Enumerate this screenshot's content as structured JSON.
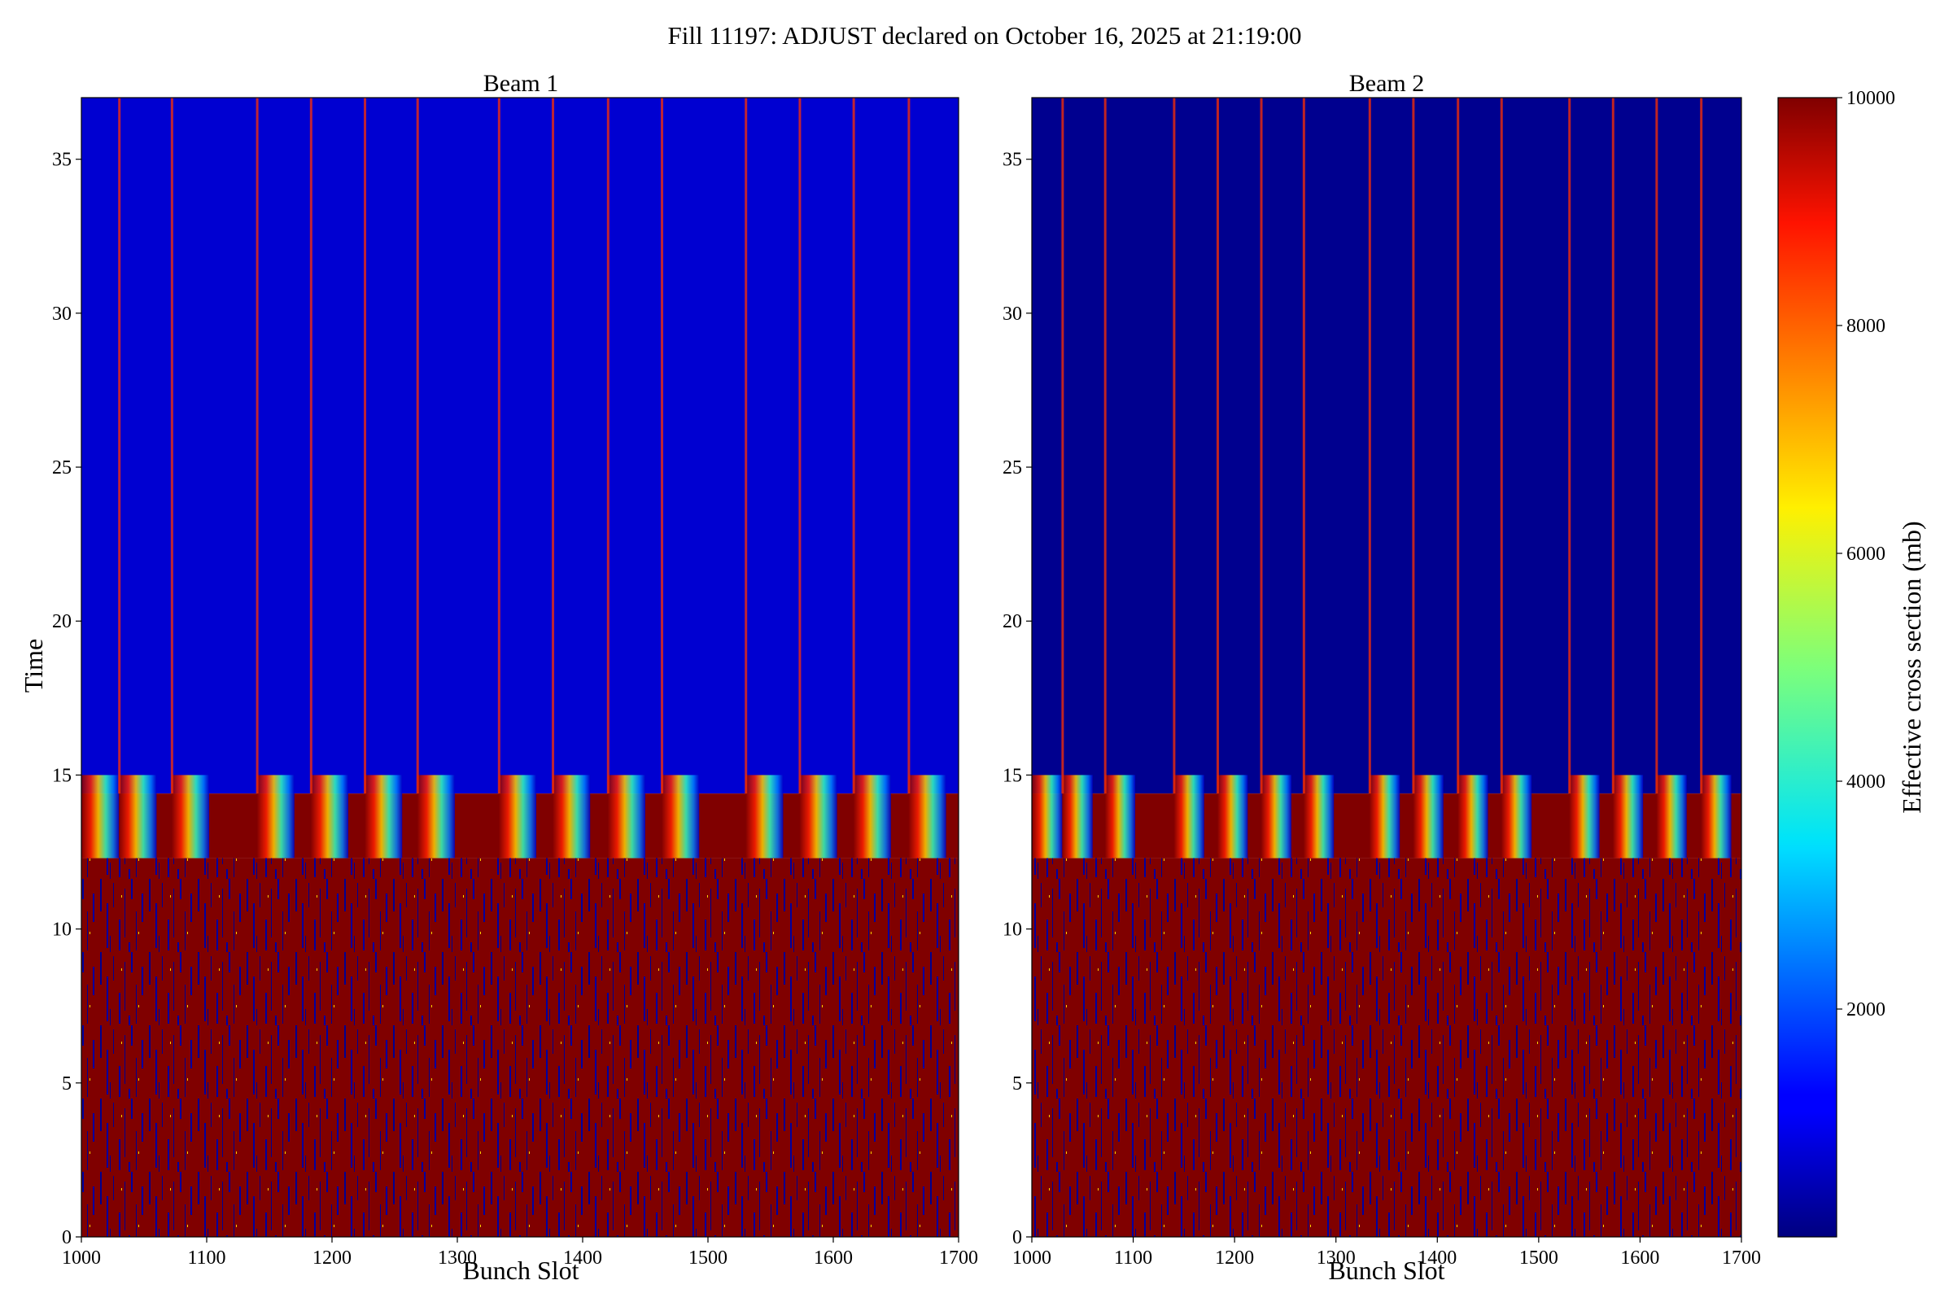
{
  "suptitle": "Fill 11197: ADJUST declared on October 16, 2025 at 21:19:00",
  "colorbar": {
    "label": "Effective cross section (mb)",
    "min": 0,
    "max": 10000,
    "ticks": [
      "2000",
      "4000",
      "6000",
      "8000",
      "10000"
    ],
    "tick_values": [
      2000,
      4000,
      6000,
      8000,
      10000
    ],
    "colormap": "jet"
  },
  "chart_data": [
    {
      "type": "heatmap",
      "title": "Beam 1",
      "xlabel": "Bunch Slot",
      "ylabel": "Time",
      "xlim": [
        1000,
        1700
      ],
      "ylim": [
        0,
        37
      ],
      "xticks": [
        "1000",
        "1100",
        "1200",
        "1300",
        "1400",
        "1500",
        "1600",
        "1700"
      ],
      "xtick_values": [
        1000,
        1100,
        1200,
        1300,
        1400,
        1500,
        1600,
        1700
      ],
      "yticks": [
        "0",
        "5",
        "10",
        "15",
        "20",
        "25",
        "30",
        "35"
      ],
      "ytick_values": [
        0,
        5,
        10,
        15,
        20,
        25,
        30,
        35
      ],
      "saturated_region": {
        "time_range": [
          0,
          12.3
        ],
        "value": 10000
      },
      "transition_region": {
        "time_range": [
          12.3,
          14.4
        ],
        "value_range": [
          3000,
          10000
        ]
      },
      "low_region": {
        "time_range": [
          14.4,
          37
        ],
        "value": 800
      },
      "train_starts": [
        1000,
        1030,
        1072,
        1140,
        1183,
        1226,
        1268,
        1333,
        1376,
        1420,
        1463,
        1530,
        1573,
        1616,
        1660
      ],
      "train_length": 30,
      "bright_lines": [
        1030,
        1072,
        1140,
        1183,
        1226,
        1268,
        1333,
        1376,
        1420,
        1463,
        1530,
        1573,
        1616,
        1660
      ]
    },
    {
      "type": "heatmap",
      "title": "Beam 2",
      "xlabel": "Bunch Slot",
      "ylabel": "",
      "xlim": [
        1000,
        1700
      ],
      "ylim": [
        0,
        37
      ],
      "xticks": [
        "1000",
        "1100",
        "1200",
        "1300",
        "1400",
        "1500",
        "1600",
        "1700"
      ],
      "xtick_values": [
        1000,
        1100,
        1200,
        1300,
        1400,
        1500,
        1600,
        1700
      ],
      "yticks": [
        "0",
        "5",
        "10",
        "15",
        "20",
        "25",
        "30",
        "35"
      ],
      "ytick_values": [
        0,
        5,
        10,
        15,
        20,
        25,
        30,
        35
      ],
      "saturated_region": {
        "time_range": [
          0,
          12.3
        ],
        "value": 10000
      },
      "transition_region": {
        "time_range": [
          12.3,
          14.4
        ],
        "value_range": [
          3000,
          10000
        ]
      },
      "low_region": {
        "time_range": [
          14.4,
          37
        ],
        "value": 150
      },
      "train_starts": [
        1000,
        1030,
        1072,
        1140,
        1183,
        1226,
        1268,
        1333,
        1376,
        1420,
        1463,
        1530,
        1573,
        1616,
        1660
      ],
      "train_length": 30,
      "bright_lines": [
        1030,
        1072,
        1140,
        1183,
        1226,
        1268,
        1333,
        1376,
        1420,
        1463,
        1530,
        1573,
        1616,
        1660
      ]
    }
  ]
}
